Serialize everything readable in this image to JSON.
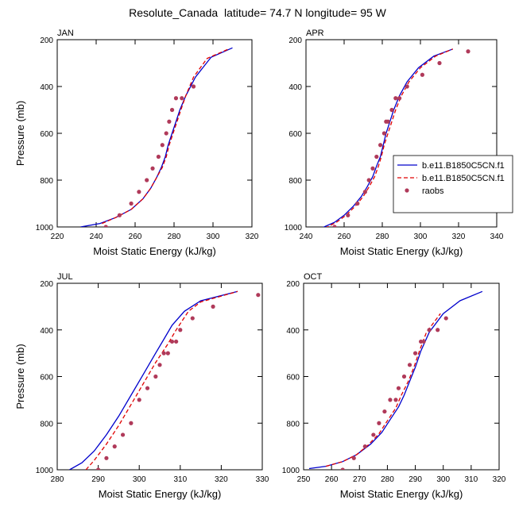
{
  "title": "Resolute_Canada  latitude= 74.7 N longitude= 95 W",
  "colors": {
    "model1": "#0000cc",
    "model2": "#e00000",
    "raobs": "#b03a5a"
  },
  "legend": {
    "entries": [
      "b.e11.B1850C5CN.f1",
      "b.e11.B1850C5CN.f1",
      "raobs"
    ],
    "placement": "right edge of APR panel"
  },
  "chart_data": [
    {
      "type": "line",
      "panel_label": "JAN",
      "xlabel": "Moist Static Energy (kJ/kg)",
      "ylabel": "Pressure (mb)",
      "xlim": [
        220,
        320
      ],
      "ylim": [
        1000,
        200
      ],
      "y_reversed": true,
      "xticks": [
        220,
        240,
        260,
        280,
        300,
        320
      ],
      "yticks": [
        200,
        400,
        600,
        800,
        1000
      ],
      "series": [
        {
          "style": "solid",
          "color": "#0000cc",
          "x": [
            232,
            242,
            250,
            258,
            264,
            268,
            271,
            273.5,
            275.5,
            277,
            279,
            281,
            283,
            286,
            291,
            299,
            310
          ],
          "y": [
            1000,
            985,
            960,
            925,
            880,
            835,
            790,
            745,
            700,
            650,
            600,
            550,
            500,
            440,
            360,
            275,
            235
          ]
        },
        {
          "style": "dashed",
          "color": "#e00000",
          "x": [
            243,
            250,
            258,
            264,
            268,
            271,
            274,
            276,
            277.5,
            279.5,
            281.5,
            283.5,
            286,
            290,
            297,
            308
          ],
          "y": [
            985,
            960,
            925,
            880,
            835,
            790,
            745,
            700,
            650,
            600,
            550,
            500,
            440,
            360,
            280,
            240
          ]
        },
        {
          "style": "points",
          "color": "#b03a5a",
          "x": [
            245,
            252,
            258,
            262,
            266,
            269,
            272,
            274,
            276,
            277.5,
            279,
            281,
            284,
            290
          ],
          "y": [
            1000,
            950,
            900,
            850,
            800,
            750,
            700,
            650,
            600,
            550,
            500,
            450,
            450,
            400
          ]
        }
      ]
    },
    {
      "type": "line",
      "panel_label": "APR",
      "xlabel": "Moist Static Energy (kJ/kg)",
      "ylabel": "",
      "xlim": [
        240,
        340
      ],
      "ylim": [
        1000,
        200
      ],
      "y_reversed": true,
      "xticks": [
        240,
        260,
        280,
        300,
        320,
        340
      ],
      "yticks": [
        200,
        400,
        600,
        800,
        1000
      ],
      "series": [
        {
          "style": "solid",
          "color": "#0000cc",
          "x": [
            248,
            255,
            260,
            265,
            269,
            272,
            275,
            277,
            279,
            280.5,
            282,
            284,
            286,
            289,
            293,
            299,
            307,
            317
          ],
          "y": [
            1005,
            980,
            950,
            910,
            870,
            830,
            785,
            740,
            700,
            650,
            600,
            550,
            500,
            440,
            380,
            320,
            270,
            240
          ]
        },
        {
          "style": "dashed",
          "color": "#e00000",
          "x": [
            250,
            256,
            261,
            266,
            270,
            273,
            276,
            278,
            279.5,
            281,
            283,
            285,
            287,
            290,
            294,
            300,
            308,
            317
          ],
          "y": [
            1005,
            980,
            950,
            910,
            870,
            830,
            785,
            740,
            700,
            650,
            600,
            550,
            500,
            440,
            380,
            320,
            270,
            240
          ]
        },
        {
          "style": "points",
          "color": "#b03a5a",
          "x": [
            255,
            262,
            267,
            271,
            273,
            275,
            277,
            279,
            281,
            282,
            283,
            285,
            287,
            289,
            293,
            301,
            310,
            325
          ],
          "y": [
            1000,
            950,
            900,
            850,
            800,
            750,
            700,
            650,
            600,
            550,
            550,
            500,
            450,
            450,
            400,
            350,
            300,
            250
          ]
        }
      ]
    },
    {
      "type": "line",
      "panel_label": "JUL",
      "xlabel": "Moist Static Energy (kJ/kg)",
      "ylabel": "Pressure (mb)",
      "xlim": [
        280,
        330
      ],
      "ylim": [
        1000,
        200
      ],
      "y_reversed": true,
      "xticks": [
        280,
        290,
        300,
        310,
        320,
        330
      ],
      "yticks": [
        200,
        400,
        600,
        800,
        1000
      ],
      "series": [
        {
          "style": "solid",
          "color": "#0000cc",
          "x": [
            283,
            286,
            289,
            292,
            295,
            298,
            301,
            304,
            306,
            308,
            311,
            315,
            324
          ],
          "y": [
            1000,
            970,
            920,
            850,
            770,
            680,
            590,
            500,
            440,
            380,
            320,
            275,
            235
          ]
        },
        {
          "style": "dashed",
          "color": "#e00000",
          "x": [
            287,
            289,
            292,
            295,
            298,
            301,
            304,
            307,
            309,
            310.5,
            312,
            315,
            324
          ],
          "y": [
            1000,
            960,
            890,
            810,
            720,
            630,
            540,
            460,
            400,
            360,
            320,
            280,
            235
          ]
        },
        {
          "style": "points",
          "color": "#b03a5a",
          "x": [
            290,
            292,
            294,
            296,
            298,
            300,
            302,
            304,
            305,
            306,
            307,
            308,
            309,
            310,
            313,
            318,
            329
          ],
          "y": [
            1000,
            950,
            900,
            850,
            800,
            700,
            650,
            600,
            550,
            500,
            500,
            450,
            450,
            400,
            350,
            300,
            250
          ]
        }
      ]
    },
    {
      "type": "line",
      "panel_label": "OCT",
      "xlabel": "Moist Static Energy (kJ/kg)",
      "ylabel": "",
      "xlim": [
        250,
        320
      ],
      "ylim": [
        1000,
        200
      ],
      "y_reversed": true,
      "xticks": [
        250,
        260,
        270,
        280,
        290,
        300,
        310,
        320
      ],
      "yticks": [
        200,
        400,
        600,
        800,
        1000
      ],
      "series": [
        {
          "style": "solid",
          "color": "#0000cc",
          "x": [
            252,
            258,
            264,
            269,
            274,
            278,
            281,
            284,
            286,
            288,
            290,
            292,
            295,
            300,
            306,
            314
          ],
          "y": [
            995,
            985,
            965,
            935,
            890,
            840,
            785,
            730,
            680,
            620,
            560,
            490,
            410,
            330,
            275,
            235
          ]
        },
        {
          "style": "dashed",
          "color": "#e00000",
          "x": [
            258,
            264,
            269,
            273,
            277,
            280,
            283,
            285,
            287.5,
            289.5,
            291.5,
            294,
            299
          ],
          "y": [
            985,
            965,
            935,
            895,
            845,
            790,
            735,
            680,
            620,
            560,
            490,
            410,
            330
          ]
        },
        {
          "style": "points",
          "color": "#b03a5a",
          "x": [
            264,
            268,
            272,
            275,
            277,
            279,
            281,
            283,
            284,
            286,
            288,
            290,
            292,
            293,
            295,
            298,
            301
          ],
          "y": [
            1000,
            950,
            900,
            850,
            800,
            750,
            700,
            700,
            650,
            600,
            550,
            500,
            450,
            450,
            400,
            400,
            350
          ]
        }
      ]
    }
  ]
}
